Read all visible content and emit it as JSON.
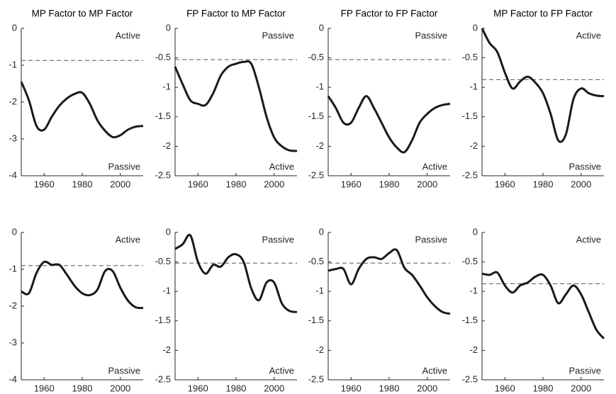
{
  "chart_data": [
    {
      "type": "line",
      "title": "MP Factor to MP Factor",
      "x": [
        1948,
        1952,
        1956,
        1960,
        1964,
        1968,
        1972,
        1976,
        1980,
        1984,
        1988,
        1992,
        1996,
        2000,
        2004,
        2008,
        2012
      ],
      "values": [
        -1.45,
        -1.95,
        -2.65,
        -2.75,
        -2.4,
        -2.1,
        -1.9,
        -1.78,
        -1.75,
        -2.05,
        -2.5,
        -2.78,
        -2.95,
        -2.9,
        -2.75,
        -2.67,
        -2.65
      ],
      "color": "#1a1a1a",
      "reference_line": -0.87,
      "annotations": [
        {
          "text": "Active",
          "position": "top"
        },
        {
          "text": "Passive",
          "position": "bottom"
        }
      ],
      "xlim": [
        1948,
        2012
      ],
      "xticks": [
        1960,
        1980,
        2000
      ],
      "ylim": [
        -4,
        0
      ],
      "yticks": [
        -4,
        -3,
        -2,
        -1,
        0
      ]
    },
    {
      "type": "line",
      "title": "FP Factor to MP Factor",
      "x": [
        1948,
        1952,
        1956,
        1960,
        1964,
        1968,
        1972,
        1976,
        1980,
        1984,
        1988,
        1992,
        1996,
        2000,
        2004,
        2008,
        2012
      ],
      "values": [
        -0.65,
        -0.95,
        -1.22,
        -1.28,
        -1.3,
        -1.1,
        -0.8,
        -0.65,
        -0.6,
        -0.57,
        -0.6,
        -1.0,
        -1.5,
        -1.85,
        -2.0,
        -2.07,
        -2.08
      ],
      "color": "#1a1a1a",
      "reference_line": -0.53,
      "annotations": [
        {
          "text": "Passive",
          "position": "top"
        },
        {
          "text": "Active",
          "position": "bottom"
        }
      ],
      "xlim": [
        1948,
        2012
      ],
      "xticks": [
        1960,
        1980,
        2000
      ],
      "ylim": [
        -2.5,
        0
      ],
      "yticks": [
        -2.5,
        -2,
        -1.5,
        -1,
        -0.5,
        0
      ]
    },
    {
      "type": "line",
      "title": "FP Factor to FP Factor",
      "x": [
        1948,
        1952,
        1956,
        1960,
        1964,
        1968,
        1972,
        1976,
        1980,
        1984,
        1988,
        1992,
        1996,
        2000,
        2004,
        2008,
        2012
      ],
      "values": [
        -1.15,
        -1.35,
        -1.6,
        -1.6,
        -1.35,
        -1.15,
        -1.35,
        -1.6,
        -1.85,
        -2.02,
        -2.1,
        -1.9,
        -1.6,
        -1.45,
        -1.35,
        -1.3,
        -1.28
      ],
      "color": "#1a1a1a",
      "reference_line": -0.53,
      "annotations": [
        {
          "text": "Passive",
          "position": "top"
        },
        {
          "text": "Active",
          "position": "bottom"
        }
      ],
      "xlim": [
        1948,
        2012
      ],
      "xticks": [
        1960,
        1980,
        2000
      ],
      "ylim": [
        -2.5,
        0
      ],
      "yticks": [
        -2.5,
        -2,
        -1.5,
        -1,
        -0.5,
        0
      ]
    },
    {
      "type": "line",
      "title": "MP Factor to FP Factor",
      "x": [
        1948,
        1952,
        1956,
        1960,
        1964,
        1968,
        1972,
        1976,
        1980,
        1984,
        1988,
        1992,
        1996,
        2000,
        2004,
        2008,
        2012
      ],
      "values": [
        0,
        -0.25,
        -0.4,
        -0.75,
        -1.02,
        -0.9,
        -0.82,
        -0.92,
        -1.1,
        -1.45,
        -1.9,
        -1.8,
        -1.2,
        -1.02,
        -1.1,
        -1.14,
        -1.15
      ],
      "color": "#1a1a1a",
      "reference_line": -0.87,
      "annotations": [
        {
          "text": "Active",
          "position": "top"
        },
        {
          "text": "Passive",
          "position": "bottom"
        }
      ],
      "xlim": [
        1948,
        2012
      ],
      "xticks": [
        1960,
        1980,
        2000
      ],
      "ylim": [
        -2.5,
        0
      ],
      "yticks": [
        -2.5,
        -2,
        -1.5,
        -1,
        -0.5,
        0
      ]
    },
    {
      "type": "line",
      "x": [
        1948,
        1952,
        1956,
        1960,
        1964,
        1968,
        1972,
        1976,
        1980,
        1984,
        1988,
        1992,
        1996,
        2000,
        2004,
        2008,
        2012
      ],
      "values": [
        -1.6,
        -1.65,
        -1.1,
        -0.8,
        -0.88,
        -0.88,
        -1.15,
        -1.45,
        -1.65,
        -1.7,
        -1.55,
        -1.05,
        -1.05,
        -1.5,
        -1.85,
        -2.03,
        -2.05
      ],
      "color": "#1a1a1a",
      "reference_line": -0.9,
      "annotations": [
        {
          "text": "Active",
          "position": "top"
        },
        {
          "text": "Passive",
          "position": "bottom"
        }
      ],
      "xlim": [
        1948,
        2012
      ],
      "xticks": [
        1960,
        1980,
        2000
      ],
      "ylim": [
        -4,
        0
      ],
      "yticks": [
        -4,
        -3,
        -2,
        -1,
        0
      ]
    },
    {
      "type": "line",
      "x": [
        1948,
        1952,
        1956,
        1960,
        1964,
        1968,
        1972,
        1976,
        1980,
        1984,
        1988,
        1992,
        1996,
        2000,
        2004,
        2008,
        2012
      ],
      "values": [
        -0.28,
        -0.2,
        -0.05,
        -0.5,
        -0.7,
        -0.55,
        -0.58,
        -0.42,
        -0.37,
        -0.5,
        -0.95,
        -1.15,
        -0.85,
        -0.85,
        -1.2,
        -1.33,
        -1.35
      ],
      "color": "#1a1a1a",
      "reference_line": -0.52,
      "annotations": [
        {
          "text": "Passive",
          "position": "top"
        },
        {
          "text": "Active",
          "position": "bottom"
        }
      ],
      "xlim": [
        1948,
        2012
      ],
      "xticks": [
        1960,
        1980,
        2000
      ],
      "ylim": [
        -2.5,
        0
      ],
      "yticks": [
        -2.5,
        -2,
        -1.5,
        -1,
        -0.5,
        0
      ]
    },
    {
      "type": "line",
      "x": [
        1948,
        1952,
        1956,
        1960,
        1964,
        1968,
        1972,
        1976,
        1980,
        1984,
        1988,
        1992,
        1996,
        2000,
        2004,
        2008,
        2012
      ],
      "values": [
        -0.65,
        -0.62,
        -0.62,
        -0.88,
        -0.62,
        -0.45,
        -0.42,
        -0.45,
        -0.35,
        -0.3,
        -0.6,
        -0.72,
        -0.9,
        -1.1,
        -1.25,
        -1.35,
        -1.38
      ],
      "color": "#1a1a1a",
      "reference_line": -0.52,
      "annotations": [
        {
          "text": "Passive",
          "position": "top"
        },
        {
          "text": "Active",
          "position": "bottom"
        }
      ],
      "xlim": [
        1948,
        2012
      ],
      "xticks": [
        1960,
        1980,
        2000
      ],
      "ylim": [
        -2.5,
        0
      ],
      "yticks": [
        -2.5,
        -2,
        -1.5,
        -1,
        -0.5,
        0
      ]
    },
    {
      "type": "line",
      "x": [
        1948,
        1952,
        1956,
        1960,
        1964,
        1968,
        1972,
        1976,
        1980,
        1984,
        1988,
        1992,
        1996,
        2000,
        2004,
        2008,
        2012
      ],
      "values": [
        -0.7,
        -0.72,
        -0.68,
        -0.9,
        -1.02,
        -0.9,
        -0.85,
        -0.75,
        -0.72,
        -0.9,
        -1.2,
        -1.05,
        -0.9,
        -1.05,
        -1.35,
        -1.65,
        -1.8
      ],
      "color": "#1a1a1a",
      "reference_line": -0.87,
      "annotations": [
        {
          "text": "Active",
          "position": "top"
        },
        {
          "text": "Passive",
          "position": "bottom"
        }
      ],
      "xlim": [
        1948,
        2012
      ],
      "xticks": [
        1960,
        1980,
        2000
      ],
      "ylim": [
        -2.5,
        0
      ],
      "yticks": [
        -2.5,
        -2,
        -1.5,
        -1,
        -0.5,
        0
      ]
    }
  ]
}
